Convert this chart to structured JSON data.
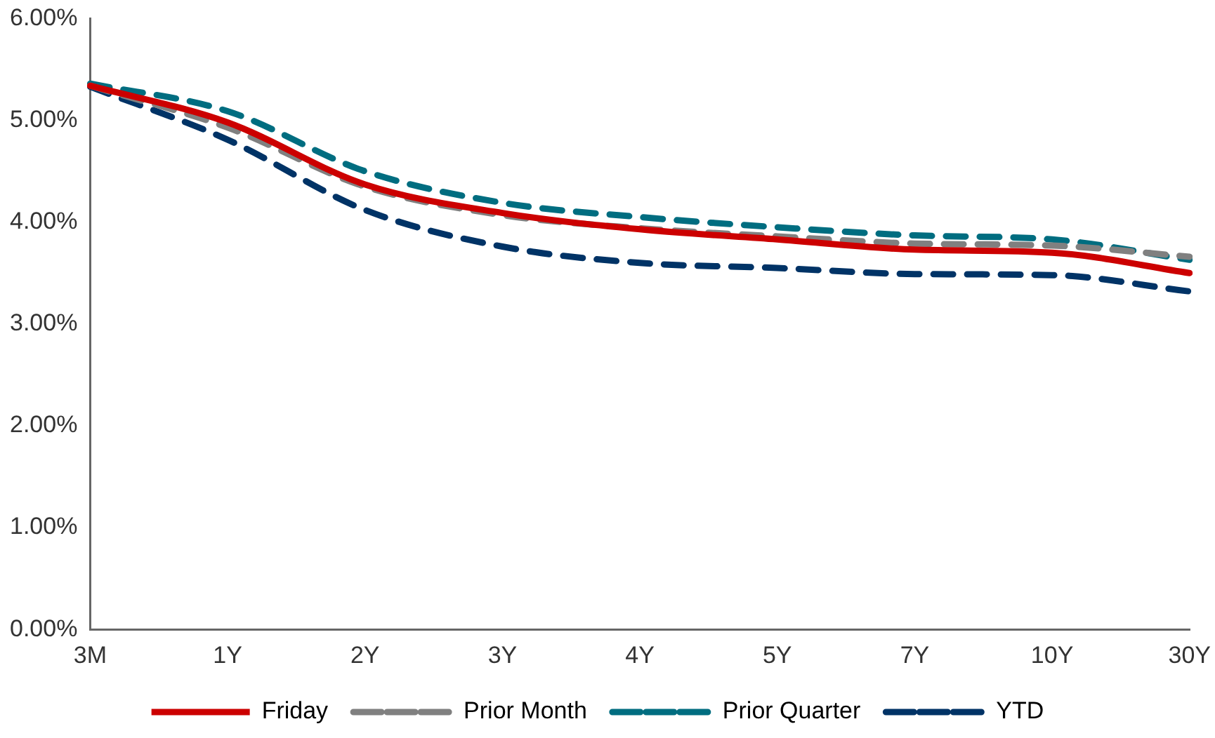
{
  "chart_data": {
    "type": "line",
    "categories": [
      "3M",
      "1Y",
      "2Y",
      "3Y",
      "4Y",
      "5Y",
      "7Y",
      "10Y",
      "30Y"
    ],
    "series": [
      {
        "name": "Friday",
        "color": "#cc0000",
        "line_style": "solid",
        "values": [
          5.34,
          4.98,
          4.37,
          4.09,
          3.93,
          3.83,
          3.73,
          3.7,
          3.5
        ]
      },
      {
        "name": "Prior Month",
        "color": "#808080",
        "line_style": "dashed",
        "values": [
          5.34,
          4.93,
          4.35,
          4.07,
          3.94,
          3.86,
          3.79,
          3.77,
          3.66
        ]
      },
      {
        "name": "Prior Quarter",
        "color": "#006d80",
        "line_style": "dashed",
        "values": [
          5.36,
          5.09,
          4.5,
          4.19,
          4.05,
          3.95,
          3.87,
          3.83,
          3.63
        ]
      },
      {
        "name": "YTD",
        "color": "#003366",
        "line_style": "dashed",
        "values": [
          5.33,
          4.81,
          4.12,
          3.76,
          3.6,
          3.55,
          3.49,
          3.48,
          3.32
        ]
      }
    ],
    "ylim": [
      0,
      6
    ],
    "yticks": [
      {
        "value": 0,
        "label": "0.00%"
      },
      {
        "value": 1,
        "label": "1.00%"
      },
      {
        "value": 2,
        "label": "2.00%"
      },
      {
        "value": 3,
        "label": "3.00%"
      },
      {
        "value": 4,
        "label": "4.00%"
      },
      {
        "value": 5,
        "label": "5.00%"
      },
      {
        "value": 6,
        "label": "6.00%"
      }
    ],
    "grid": false,
    "legend": "bottom",
    "marker": "none"
  }
}
